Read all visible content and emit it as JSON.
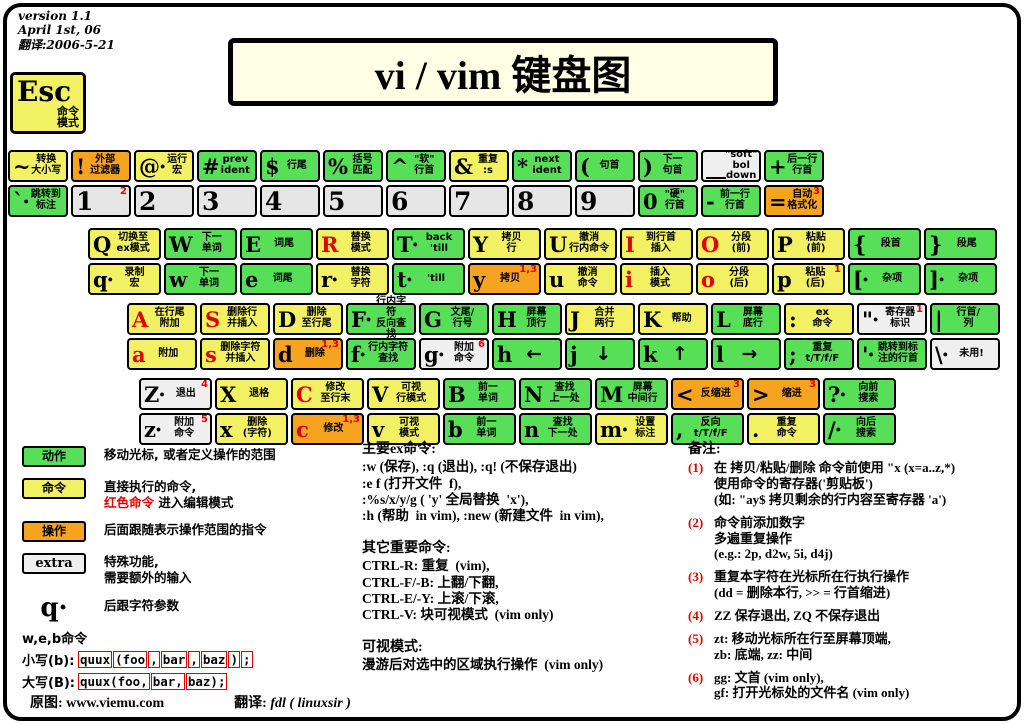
{
  "meta": {
    "v": "version 1.1",
    "d": "April 1st, 06",
    "t": "翻译:2006-5-21"
  },
  "title": "vi / vim 键盘图",
  "esc": {
    "label": "Esc",
    "desc": "命令\n模式"
  },
  "keyboard": {
    "rows": [
      {
        "keys": [
          {
            "id": "tilde",
            "top": {
              "s": "~",
              "l": "转换\n大小写",
              "c": "y"
            },
            "bottom": {
              "s": "`·",
              "l": "跳转到\n标注",
              "c": "g"
            }
          },
          {
            "id": "1",
            "top": {
              "s": "!",
              "l": "外部\n过滤器",
              "c": "o"
            },
            "bottom": {
              "s": "1",
              "c": "n",
              "sup": "2"
            }
          },
          {
            "id": "2",
            "top": {
              "s": "@·",
              "l": "运行\n宏",
              "c": "y"
            },
            "bottom": {
              "s": "2",
              "c": "n"
            }
          },
          {
            "id": "3",
            "top": {
              "s": "#",
              "l": "prev\nident",
              "c": "g"
            },
            "bottom": {
              "s": "3",
              "c": "n"
            }
          },
          {
            "id": "4",
            "top": {
              "s": "$",
              "l": "行尾",
              "c": "g"
            },
            "bottom": {
              "s": "4",
              "c": "n"
            }
          },
          {
            "id": "5",
            "top": {
              "s": "%",
              "l": "括号\n匹配",
              "c": "g"
            },
            "bottom": {
              "s": "5",
              "c": "n"
            }
          },
          {
            "id": "6",
            "top": {
              "s": "^",
              "l": "\"软\"\n行首",
              "c": "g"
            },
            "bottom": {
              "s": "6",
              "c": "n"
            }
          },
          {
            "id": "7",
            "top": {
              "s": "&",
              "l": "重复\n:s",
              "c": "y"
            },
            "bottom": {
              "s": "7",
              "c": "n"
            }
          },
          {
            "id": "8",
            "top": {
              "s": "*",
              "l": "next\nident",
              "c": "g"
            },
            "bottom": {
              "s": "8",
              "c": "n"
            }
          },
          {
            "id": "9",
            "top": {
              "s": "(",
              "l": "句首",
              "c": "g"
            },
            "bottom": {
              "s": "9",
              "c": "n"
            }
          },
          {
            "id": "0",
            "top": {
              "s": ")",
              "l": "下一\n句首",
              "c": "g"
            },
            "bottom": {
              "s": "0",
              "l": "\"硬\"\n行首",
              "c": "g"
            }
          },
          {
            "id": "minus",
            "top": {
              "s": "__",
              "l": "\"soft\" bol\ndown",
              "c": "w"
            },
            "bottom": {
              "s": "-",
              "l": "前一行\n行首",
              "c": "g"
            }
          },
          {
            "id": "equals",
            "top": {
              "s": "+",
              "l": "后一行\n行首",
              "c": "g"
            },
            "bottom": {
              "s": "=",
              "l": "自动\n格式化",
              "c": "o",
              "sup": "3"
            }
          }
        ]
      },
      {
        "keys": [
          {
            "id": "q",
            "top": {
              "s": "Q",
              "l": "切换至\nex模式",
              "c": "y"
            },
            "bottom": {
              "s": "q·",
              "l": "录制\n宏",
              "c": "y"
            }
          },
          {
            "id": "w",
            "top": {
              "s": "W",
              "l": "下一\n单词",
              "c": "g"
            },
            "bottom": {
              "s": "w",
              "l": "下一\n单词",
              "c": "g"
            }
          },
          {
            "id": "e",
            "top": {
              "s": "E",
              "l": "词尾",
              "c": "g"
            },
            "bottom": {
              "s": "e",
              "l": "词尾",
              "c": "g"
            }
          },
          {
            "id": "r",
            "top": {
              "s": "R",
              "red": true,
              "l": "替换\n模式",
              "c": "y"
            },
            "bottom": {
              "s": "r·",
              "l": "替换\n字符",
              "c": "y"
            }
          },
          {
            "id": "t",
            "top": {
              "s": "T·",
              "l": "back\n'till",
              "c": "g"
            },
            "bottom": {
              "s": "t·",
              "l": "'till",
              "c": "g"
            }
          },
          {
            "id": "y",
            "top": {
              "s": "Y",
              "l": "拷贝\n行",
              "c": "y"
            },
            "bottom": {
              "s": "y",
              "l": "拷贝",
              "c": "o",
              "sup": "1,3"
            }
          },
          {
            "id": "u",
            "top": {
              "s": "U",
              "l": "撤消\n行内命令",
              "c": "y"
            },
            "bottom": {
              "s": "u",
              "l": "撤消\n命令",
              "c": "y"
            }
          },
          {
            "id": "i",
            "top": {
              "s": "I",
              "red": true,
              "l": "到行首\n插入",
              "c": "y"
            },
            "bottom": {
              "s": "i",
              "red": true,
              "l": "插入\n模式",
              "c": "y"
            }
          },
          {
            "id": "o",
            "top": {
              "s": "O",
              "red": true,
              "l": "分段\n(前)",
              "c": "y"
            },
            "bottom": {
              "s": "o",
              "red": true,
              "l": "分段\n(后)",
              "c": "y"
            }
          },
          {
            "id": "p",
            "top": {
              "s": "P",
              "l": "粘贴\n(前)",
              "c": "y"
            },
            "bottom": {
              "s": "p",
              "l": "粘贴\n(后)",
              "c": "y",
              "sup": "1"
            }
          },
          {
            "id": "lbrace",
            "top": {
              "s": "{",
              "l": "段首",
              "c": "g"
            },
            "bottom": {
              "s": "[·",
              "l": "杂项",
              "c": "g"
            }
          },
          {
            "id": "rbrace",
            "top": {
              "s": "}",
              "l": "段尾",
              "c": "g"
            },
            "bottom": {
              "s": "]·",
              "l": "杂项",
              "c": "g"
            }
          }
        ]
      },
      {
        "keys": [
          {
            "id": "a",
            "top": {
              "s": "A",
              "red": true,
              "l": "在行尾\n附加",
              "c": "y"
            },
            "bottom": {
              "s": "a",
              "red": true,
              "l": "附加",
              "c": "y"
            }
          },
          {
            "id": "s",
            "top": {
              "s": "S",
              "red": true,
              "l": "删除行\n并插入",
              "c": "y"
            },
            "bottom": {
              "s": "s",
              "red": true,
              "l": "删除字符\n并插入",
              "c": "y"
            }
          },
          {
            "id": "d",
            "top": {
              "s": "D",
              "l": "删除\n至行尾",
              "c": "y"
            },
            "bottom": {
              "s": "d",
              "l": "删除",
              "c": "o",
              "sup": "1,3"
            }
          },
          {
            "id": "f",
            "top": {
              "s": "F·",
              "l": "行内字符\n反向查找",
              "c": "g"
            },
            "bottom": {
              "s": "f·",
              "l": "行内字符\n查找",
              "c": "g"
            }
          },
          {
            "id": "g",
            "top": {
              "s": "G",
              "l": "文尾/\n行号",
              "c": "g"
            },
            "bottom": {
              "s": "g·",
              "l": "附加\n命令",
              "c": "w",
              "sup": "6"
            }
          },
          {
            "id": "h",
            "top": {
              "s": "H",
              "l": "屏幕\n顶行",
              "c": "g"
            },
            "bottom": {
              "s": "h",
              "l": "←",
              "c": "g",
              "arrow": true
            }
          },
          {
            "id": "j",
            "top": {
              "s": "J",
              "l": "合并\n两行",
              "c": "y"
            },
            "bottom": {
              "s": "j",
              "l": "↓",
              "c": "g",
              "arrow": true
            }
          },
          {
            "id": "k",
            "top": {
              "s": "K",
              "l": "帮助",
              "c": "y"
            },
            "bottom": {
              "s": "k",
              "l": "↑",
              "c": "g",
              "arrow": true
            }
          },
          {
            "id": "l",
            "top": {
              "s": "L",
              "l": "屏幕\n底行",
              "c": "g"
            },
            "bottom": {
              "s": "l",
              "l": "→",
              "c": "g",
              "arrow": true
            }
          },
          {
            "id": "colon",
            "top": {
              "s": ":",
              "l": "ex\n命令",
              "c": "y"
            },
            "bottom": {
              "s": ";",
              "l": "重复\nt/T/f/F",
              "c": "g"
            }
          },
          {
            "id": "quote",
            "top": {
              "s": "\"·",
              "l": "寄存器\n标识",
              "c": "w",
              "sup": "1"
            },
            "bottom": {
              "s": "'·",
              "l": "跳转到标\n注的行首",
              "c": "g"
            }
          },
          {
            "id": "pipe",
            "top": {
              "s": "|",
              "l": "行首/\n列",
              "c": "g"
            },
            "bottom": {
              "s": "\\·",
              "l": "未用!",
              "c": "w"
            }
          }
        ]
      },
      {
        "keys": [
          {
            "id": "z",
            "top": {
              "s": "Z·",
              "l": "退出",
              "c": "w",
              "sup": "4"
            },
            "bottom": {
              "s": "z·",
              "l": "附加\n命令",
              "c": "w",
              "sup": "5"
            }
          },
          {
            "id": "x",
            "top": {
              "s": "X",
              "l": "退格",
              "c": "y"
            },
            "bottom": {
              "s": "x",
              "l": "删除\n(字符)",
              "c": "y"
            }
          },
          {
            "id": "c",
            "top": {
              "s": "C",
              "red": true,
              "l": "修改\n至行末",
              "c": "y"
            },
            "bottom": {
              "s": "c",
              "red": true,
              "l": "修改",
              "c": "o",
              "sup": "1,3"
            }
          },
          {
            "id": "v",
            "top": {
              "s": "V",
              "l": "可视\n行模式",
              "c": "y"
            },
            "bottom": {
              "s": "v",
              "l": "可视\n模式",
              "c": "y"
            }
          },
          {
            "id": "b",
            "top": {
              "s": "B",
              "l": "前一\n单词",
              "c": "g"
            },
            "bottom": {
              "s": "b",
              "l": "前一\n单词",
              "c": "g"
            }
          },
          {
            "id": "n",
            "top": {
              "s": "N",
              "l": "查找\n上一处",
              "c": "g"
            },
            "bottom": {
              "s": "n",
              "l": "查找\n下一处",
              "c": "g"
            }
          },
          {
            "id": "m",
            "top": {
              "s": "M",
              "l": "屏幕\n中间行",
              "c": "g"
            },
            "bottom": {
              "s": "m·",
              "l": "设置\n标注",
              "c": "y"
            }
          },
          {
            "id": "comma",
            "top": {
              "s": "<",
              "l": "反缩进",
              "c": "o",
              "sup": "3"
            },
            "bottom": {
              "s": ",",
              "l": "反向\nt/T/f/F",
              "c": "g"
            }
          },
          {
            "id": "period",
            "top": {
              "s": ">",
              "l": "缩进",
              "c": "o",
              "sup": "3"
            },
            "bottom": {
              "s": ".",
              "l": "重复\n命令",
              "c": "y"
            }
          },
          {
            "id": "slash",
            "top": {
              "s": "?·",
              "l": "向前\n搜索",
              "c": "g"
            },
            "bottom": {
              "s": "/·",
              "l": "向后\n搜索",
              "c": "g"
            }
          }
        ]
      }
    ]
  },
  "legend": {
    "items": [
      {
        "box": "动作",
        "c": "g",
        "lines": [
          [
            {
              "t": "移动光标, 或者定义操作的范围"
            }
          ]
        ]
      },
      {
        "box": "命令",
        "c": "y",
        "lines": [
          [
            {
              "t": "直接执行的命令,"
            }
          ],
          [
            {
              "t": "红色命令",
              "red": true
            },
            {
              "t": " 进入编辑模式"
            }
          ]
        ]
      },
      {
        "box": "操作",
        "c": "o",
        "lines": [
          [
            {
              "t": "后面跟随表示操作范围的指令"
            }
          ]
        ]
      },
      {
        "box": "extra",
        "c": "w",
        "en": true,
        "lines": [
          [
            {
              "t": "特殊功能,"
            }
          ],
          [
            {
              "t": "需要额外的输入"
            }
          ]
        ]
      },
      {
        "glyph": "q·",
        "lines": [
          [
            {
              "t": "后跟字符参数"
            }
          ]
        ]
      }
    ]
  },
  "web": {
    "title": "w,e,b命令",
    "rows": [
      {
        "label": "小写(b):",
        "segments": [
          "quux",
          "(foo",
          ",",
          "bar",
          ",",
          "baz",
          ")",
          ";"
        ]
      },
      {
        "label": "大写(B):",
        "segments": [
          "quux(foo,",
          "bar,",
          "baz);"
        ]
      }
    ]
  },
  "ex_blocks": [
    {
      "title": "主要ex命令:",
      "lines": [
        ":w (保存), :q (退出), :q! (不保存退出)",
        ":e f (打开文件  f),",
        ":%s/x/y/g ( 'y' 全局替换  'x'),",
        ":h (帮助  in vim), :new (新建文件  in vim),"
      ]
    },
    {
      "title": "其它重要命令:",
      "lines": [
        "CTRL-R: 重复  (vim),",
        "CTRL-F/-B: 上翻/下翻,",
        "CTRL-E/-Y: 上滚/下滚,",
        "CTRL-V: 块可视模式  (vim only)"
      ]
    },
    {
      "title": "可视模式:",
      "lines": [
        "漫游后对选中的区域执行操作  (vim only)"
      ]
    }
  ],
  "notes": {
    "title": "备注:",
    "items": [
      {
        "num": "(1)",
        "text": "在 拷贝/粘贴/删除 命令前使用 \"x (x=a..z,*)\n使用命令的寄存器('剪贴板')\n(如: \"ay$ 拷贝剩余的行内容至寄存器 'a')"
      },
      {
        "num": "(2)",
        "text": "命令前添加数字\n多遍重复操作\n(e.g.: 2p, d2w, 5i, d4j)"
      },
      {
        "num": "(3)",
        "text": "重复本字符在光标所在行执行操作\n(dd = 删除本行, >> = 行首缩进)"
      },
      {
        "num": "(4)",
        "text": "ZZ 保存退出, ZQ 不保存退出"
      },
      {
        "num": "(5)",
        "text": "zt: 移动光标所在行至屏幕顶端,\nzb: 底端, zz: 中间"
      },
      {
        "num": "(6)",
        "text": "gg: 文首  (vim only),\ngf: 打开光标处的文件名  (vim only)"
      }
    ]
  },
  "footer": {
    "source_label": "原图: ",
    "source": "www.viemu.com",
    "trans_label": "翻译:  ",
    "trans": "fdl ( linuxsir )"
  }
}
